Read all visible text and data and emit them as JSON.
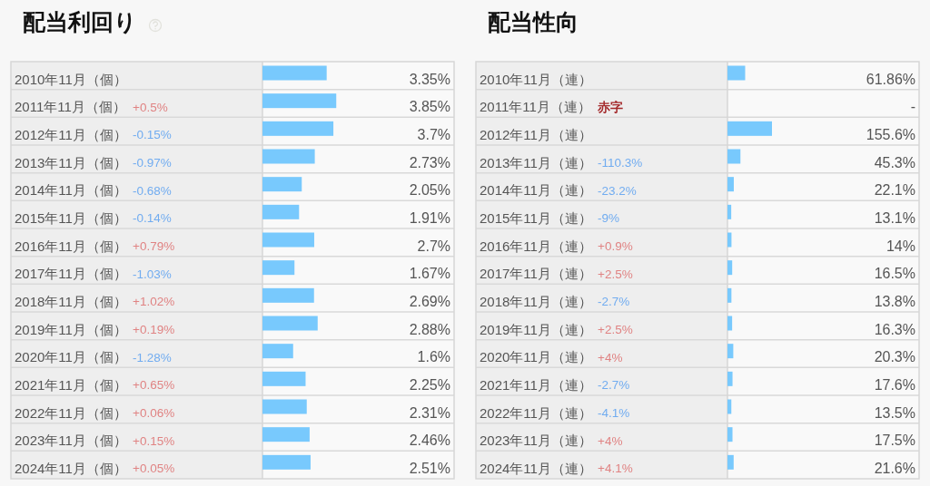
{
  "chart_data": [
    {
      "type": "bar",
      "orientation": "horizontal",
      "title": "配当利回り",
      "tick_labels": "y",
      "xlim": [
        0,
        10
      ],
      "color": "#78c9fd",
      "categories": [
        "2010年11月（個）",
        "2011年11月（個）",
        "2012年11月（個）",
        "2013年11月（個）",
        "2014年11月（個）",
        "2015年11月（個）",
        "2016年11月（個）",
        "2017年11月（個）",
        "2018年11月（個）",
        "2019年11月（個）",
        "2020年11月（個）",
        "2021年11月（個）",
        "2022年11月（個）",
        "2023年11月（個）",
        "2024年11月（個）"
      ],
      "values": [
        3.35,
        3.85,
        3.7,
        2.73,
        2.05,
        1.91,
        2.7,
        1.67,
        2.69,
        2.88,
        1.6,
        2.25,
        2.31,
        2.46,
        2.51
      ],
      "value_labels": [
        "3.35%",
        "3.85%",
        "3.7%",
        "2.73%",
        "2.05%",
        "1.91%",
        "2.7%",
        "1.67%",
        "2.69%",
        "2.88%",
        "1.6%",
        "2.25%",
        "2.31%",
        "2.46%",
        "2.51%"
      ],
      "annotations": [
        "+0.5%",
        "-0.15%",
        "-0.97%",
        "-0.68%",
        "-0.14%",
        "+0.79%",
        "-1.03%",
        "+1.02%",
        "+0.19%",
        "-1.28%",
        "+0.65%",
        "+0.06%",
        "+0.15%",
        "+0.05%"
      ]
    },
    {
      "type": "bar",
      "orientation": "horizontal",
      "title": "配当性向",
      "tick_labels": "y",
      "xlim": [
        0,
        670
      ],
      "color": "#78c9fd",
      "categories": [
        "2010年11月（連）",
        "2011年11月（連）",
        "2012年11月（連）",
        "2013年11月（連）",
        "2014年11月（連）",
        "2015年11月（連）",
        "2016年11月（連）",
        "2017年11月（連）",
        "2018年11月（連）",
        "2019年11月（連）",
        "2020年11月（連）",
        "2021年11月（連）",
        "2022年11月（連）",
        "2023年11月（連）",
        "2024年11月（連）"
      ],
      "values": [
        61.86,
        null,
        155.6,
        45.3,
        22.1,
        13.1,
        14,
        16.5,
        13.8,
        16.3,
        20.3,
        17.6,
        13.5,
        17.5,
        21.6
      ],
      "value_labels": [
        "61.86%",
        "-",
        "155.6%",
        "45.3%",
        "22.1%",
        "13.1%",
        "14%",
        "16.5%",
        "13.8%",
        "16.3%",
        "20.3%",
        "17.6%",
        "13.5%",
        "17.5%",
        "21.6%"
      ],
      "annotations": [
        "赤字",
        "-110.3%",
        "-23.2%",
        "-9%",
        "+0.9%",
        "+2.5%",
        "-2.7%",
        "+2.5%",
        "+4%",
        "-2.7%",
        "-4.1%",
        "+4%",
        "+4.1%"
      ]
    }
  ]
}
